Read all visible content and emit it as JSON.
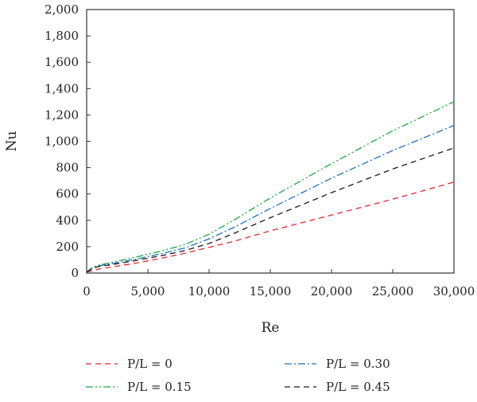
{
  "chart_data": {
    "type": "line",
    "title": "",
    "xlabel": "Re",
    "ylabel": "Nu",
    "xlim": [
      0,
      30000
    ],
    "ylim": [
      0,
      2000
    ],
    "x_ticks": [
      0,
      5000,
      10000,
      15000,
      20000,
      25000,
      30000
    ],
    "x_tick_labels": [
      "0",
      "5,000",
      "10,000",
      "15,000",
      "20,000",
      "25,000",
      "30,000"
    ],
    "y_ticks": [
      0,
      200,
      400,
      600,
      800,
      1000,
      1200,
      1400,
      1600,
      1800,
      2000
    ],
    "y_tick_labels": [
      "0",
      "200",
      "400",
      "600",
      "800",
      "1,000",
      "1,200",
      "1,400",
      "1,600",
      "1,800",
      "2,000"
    ],
    "grid": false,
    "legend_position": "bottom",
    "series": [
      {
        "name": "P/L = 0",
        "color": "#e8262a",
        "dash": "dashed",
        "x": [
          0,
          500,
          1000,
          2000,
          4000,
          6000,
          8000,
          10000,
          12000,
          15000,
          20000,
          25000,
          30000
        ],
        "y": [
          8,
          18,
          30,
          45,
          75,
          110,
          150,
          195,
          240,
          320,
          440,
          560,
          690
        ]
      },
      {
        "name": "P/L = 0.15",
        "color": "#1aab3c",
        "dash": "dash-dot-dot",
        "x": [
          0,
          500,
          1000,
          2000,
          4000,
          6000,
          8000,
          10000,
          12000,
          15000,
          20000,
          25000,
          30000
        ],
        "y": [
          8,
          45,
          60,
          80,
          120,
          165,
          215,
          295,
          400,
          570,
          830,
          1080,
          1300
        ]
      },
      {
        "name": "P/L = 0.30",
        "color": "#1f6fbf",
        "dash": "dash-dot",
        "x": [
          0,
          500,
          1000,
          2000,
          4000,
          6000,
          8000,
          10000,
          12000,
          15000,
          20000,
          25000,
          30000
        ],
        "y": [
          8,
          40,
          55,
          70,
          105,
          145,
          190,
          260,
          345,
          490,
          720,
          930,
          1120
        ]
      },
      {
        "name": "P/L = 0.45",
        "color": "#1a1a1a",
        "dash": "dashed",
        "x": [
          0,
          500,
          1000,
          2000,
          4000,
          6000,
          8000,
          10000,
          12000,
          15000,
          20000,
          25000,
          30000
        ],
        "y": [
          8,
          35,
          50,
          63,
          95,
          130,
          170,
          225,
          300,
          420,
          610,
          790,
          950
        ]
      }
    ]
  }
}
